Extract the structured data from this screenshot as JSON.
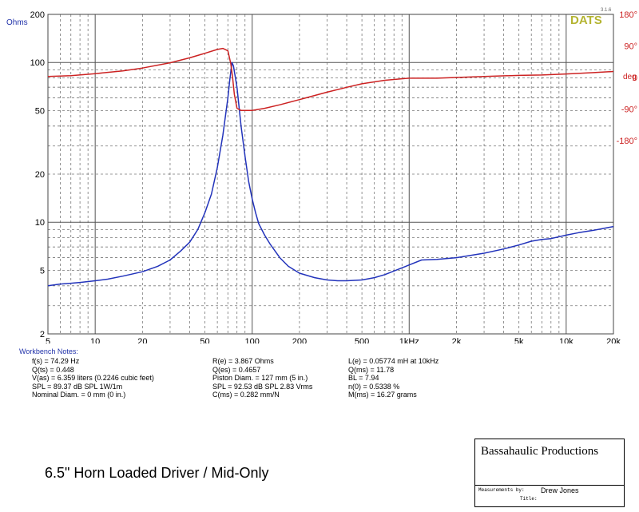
{
  "chart_data": {
    "type": "line",
    "x_axis": {
      "scale": "log",
      "range": [
        5,
        20000
      ],
      "tick_labels": [
        "5",
        "10",
        "20",
        "50",
        "100",
        "200",
        "500",
        "1kHz",
        "2k",
        "5k",
        "10k",
        "20k"
      ],
      "tick_values": [
        5,
        10,
        20,
        50,
        100,
        200,
        500,
        1000,
        2000,
        5000,
        10000,
        20000
      ]
    },
    "y_axis_left": {
      "label": "Ohms",
      "scale": "log",
      "range": [
        2,
        200
      ],
      "tick_labels": [
        "2",
        "5",
        "10",
        "20",
        "50",
        "100",
        "200"
      ],
      "tick_values": [
        2,
        5,
        10,
        20,
        50,
        100,
        200
      ]
    },
    "y_axis_right": {
      "label": "deg",
      "range": [
        -180,
        180
      ],
      "tick_labels": [
        "180°",
        "90°",
        "0",
        "-90°",
        "-180°"
      ],
      "tick_values": [
        180,
        90,
        0,
        -90,
        -180
      ]
    },
    "grid": true,
    "series": [
      {
        "color": "#2233bb",
        "axis": "left",
        "points": [
          [
            5,
            4.0
          ],
          [
            6,
            4.1
          ],
          [
            7,
            4.15
          ],
          [
            8,
            4.2
          ],
          [
            10,
            4.3
          ],
          [
            12,
            4.4
          ],
          [
            15,
            4.6
          ],
          [
            20,
            4.9
          ],
          [
            25,
            5.3
          ],
          [
            30,
            5.8
          ],
          [
            35,
            6.6
          ],
          [
            40,
            7.5
          ],
          [
            45,
            9.0
          ],
          [
            50,
            11.5
          ],
          [
            55,
            15
          ],
          [
            60,
            22
          ],
          [
            65,
            35
          ],
          [
            70,
            60
          ],
          [
            72,
            78
          ],
          [
            74.3,
            100
          ],
          [
            76,
            95
          ],
          [
            80,
            70
          ],
          [
            85,
            40
          ],
          [
            90,
            26
          ],
          [
            95,
            18
          ],
          [
            100,
            14
          ],
          [
            105,
            11.5
          ],
          [
            110,
            9.8
          ],
          [
            120,
            8.3
          ],
          [
            130,
            7.3
          ],
          [
            140,
            6.6
          ],
          [
            150,
            6.0
          ],
          [
            170,
            5.3
          ],
          [
            200,
            4.8
          ],
          [
            250,
            4.5
          ],
          [
            300,
            4.35
          ],
          [
            350,
            4.3
          ],
          [
            400,
            4.3
          ],
          [
            500,
            4.35
          ],
          [
            600,
            4.5
          ],
          [
            700,
            4.7
          ],
          [
            800,
            4.95
          ],
          [
            1000,
            5.4
          ],
          [
            1200,
            5.8
          ],
          [
            1500,
            5.85
          ],
          [
            2000,
            6.0
          ],
          [
            3000,
            6.4
          ],
          [
            4000,
            6.8
          ],
          [
            5000,
            7.2
          ],
          [
            6000,
            7.6
          ],
          [
            7000,
            7.8
          ],
          [
            8000,
            7.9
          ],
          [
            10000,
            8.3
          ],
          [
            12000,
            8.6
          ],
          [
            15000,
            8.9
          ],
          [
            20000,
            9.4
          ]
        ]
      },
      {
        "color": "#cc2222",
        "axis": "right",
        "points": [
          [
            5,
            3
          ],
          [
            7,
            5
          ],
          [
            10,
            11
          ],
          [
            15,
            19
          ],
          [
            20,
            27
          ],
          [
            30,
            42
          ],
          [
            40,
            56
          ],
          [
            50,
            69
          ],
          [
            60,
            80
          ],
          [
            65,
            83
          ],
          [
            70,
            76
          ],
          [
            73,
            40
          ],
          [
            75,
            0
          ],
          [
            77,
            -48
          ],
          [
            80,
            -88
          ],
          [
            85,
            -94
          ],
          [
            90,
            -94
          ],
          [
            100,
            -94
          ],
          [
            120,
            -88
          ],
          [
            150,
            -78
          ],
          [
            200,
            -63
          ],
          [
            300,
            -42
          ],
          [
            400,
            -28
          ],
          [
            500,
            -18
          ],
          [
            700,
            -8
          ],
          [
            1000,
            -2
          ],
          [
            1500,
            -2
          ],
          [
            2000,
            0
          ],
          [
            3000,
            3
          ],
          [
            5000,
            6
          ],
          [
            7000,
            7
          ],
          [
            10000,
            10
          ],
          [
            15000,
            14
          ],
          [
            20000,
            17
          ]
        ]
      }
    ]
  },
  "branding": {
    "logo": "DATS",
    "version": "3.1.6"
  },
  "notes": {
    "header": "Workbench Notes:",
    "col1": [
      "f(s) = 74.29 Hz",
      "Q(ts) = 0.448",
      "V(as) = 6.359 liters  (0.2246 cubic feet)",
      "SPL = 89.37 dB SPL 1W/1m",
      "Nominal Diam. = 0 mm (0 in.)"
    ],
    "col2": [
      "R(e) = 3.867 Ohms",
      "Q(es) = 0.4657",
      "Piston Diam. = 127 mm (5 in.)",
      "SPL = 92.53 dB SPL 2.83 Vrms",
      "C(ms) = 0.282 mm/N"
    ],
    "col3": [
      "L(e) = 0.05774 mH at 10kHz",
      "Q(ms) = 11.78",
      "BL = 7.94",
      "n(0) = 0.5338 %",
      "M(ms) = 16.27 grams"
    ]
  },
  "caption": "6.5\" Horn Loaded Driver / Mid-Only",
  "titlebox": {
    "company": "Bassahaulic Productions",
    "measured_label": "Measurements by:",
    "measured_by": "Drew Jones",
    "title_label": "Title:",
    "title": ""
  },
  "colors": {
    "impedance": "#2233bb",
    "phase": "#cc2222",
    "axis_text_left": "#2233aa",
    "axis_text_right": "#cc2222",
    "logo": "#b4b432"
  }
}
